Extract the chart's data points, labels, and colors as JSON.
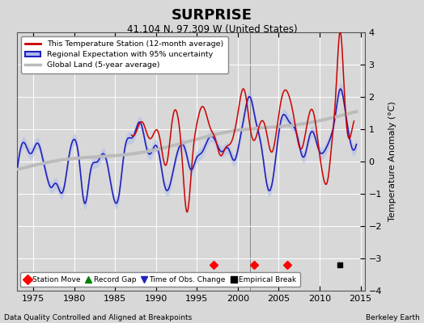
{
  "title": "SURPRISE",
  "subtitle": "41.104 N, 97.309 W (United States)",
  "ylabel": "Temperature Anomaly (°C)",
  "xlabel_left": "Data Quality Controlled and Aligned at Breakpoints",
  "xlabel_right": "Berkeley Earth",
  "ylim": [
    -4,
    4
  ],
  "xlim": [
    1973,
    2015.5
  ],
  "xticks": [
    1975,
    1980,
    1985,
    1990,
    1995,
    2000,
    2005,
    2010,
    2015
  ],
  "yticks": [
    -4,
    -3,
    -2,
    -1,
    0,
    1,
    2,
    3,
    4
  ],
  "background_color": "#d8d8d8",
  "plot_background_color": "#d8d8d8",
  "grid_color": "#ffffff",
  "vertical_line_x": [
    2001.5
  ],
  "station_move_years": [
    1997.0,
    2002.0,
    2006.0
  ],
  "empirical_break_year": 2012.5,
  "red_line_color": "#cc0000",
  "blue_line_color": "#2222bb",
  "blue_fill_color": "#aabbee",
  "gray_line_color": "#bbbbbb",
  "marker_y": -3.2,
  "legend_loc": "upper left"
}
